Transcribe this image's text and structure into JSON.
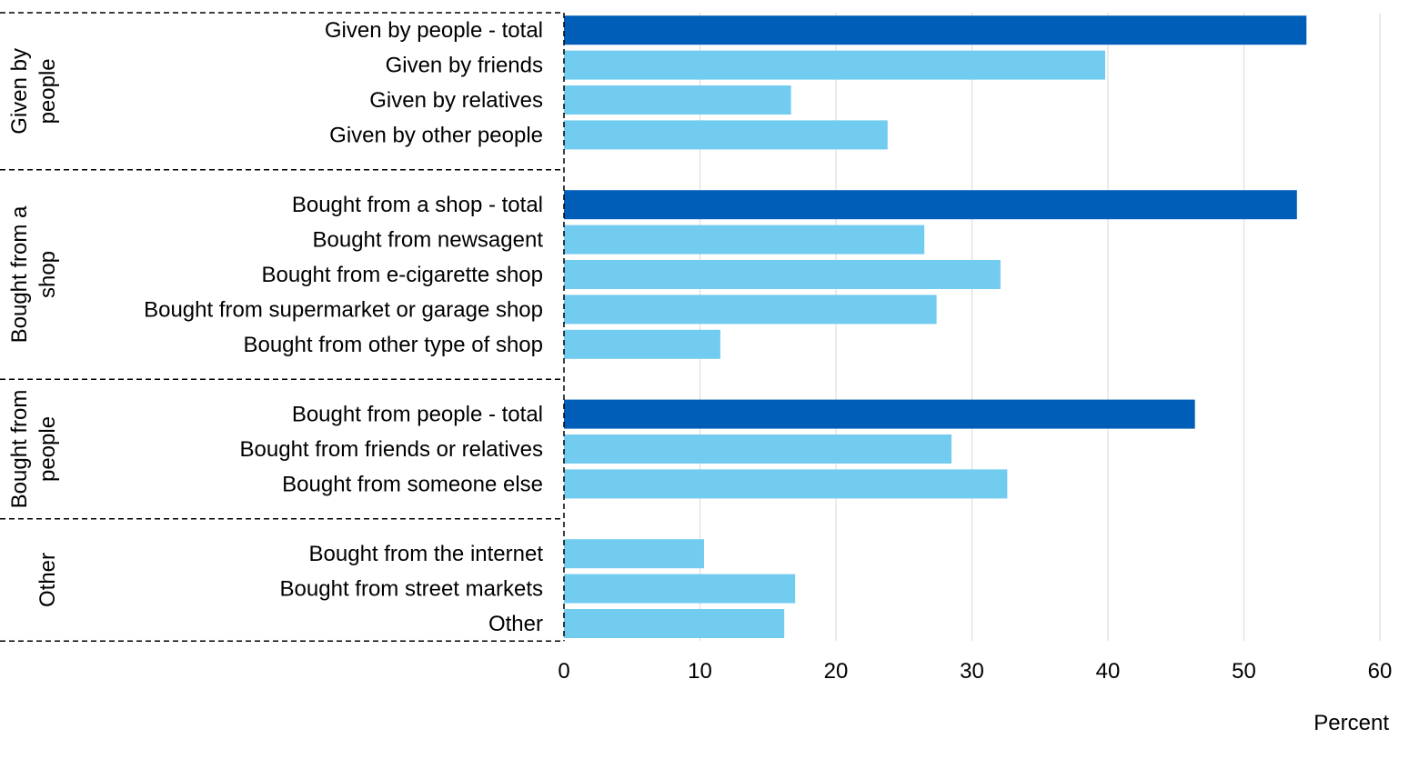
{
  "chart_data": {
    "type": "bar",
    "orientation": "horizontal",
    "title": "",
    "xlabel": "Percent",
    "xlim": [
      0,
      60
    ],
    "xticks": [
      0,
      10,
      20,
      30,
      40,
      50,
      60
    ],
    "grid": true,
    "colors": {
      "total": "#005EB8",
      "detail": "#72CCF0"
    },
    "groups": [
      {
        "label": "Given by people",
        "label_lines": [
          "Given by",
          "people"
        ],
        "bars": [
          {
            "label": "Given by people - total",
            "value": 54.6,
            "total": true
          },
          {
            "label": "Given by friends",
            "value": 39.8,
            "total": false
          },
          {
            "label": "Given by relatives",
            "value": 16.7,
            "total": false
          },
          {
            "label": "Given by other people",
            "value": 23.8,
            "total": false
          }
        ]
      },
      {
        "label": "Bought from a shop",
        "label_lines": [
          "Bought from a",
          "shop"
        ],
        "bars": [
          {
            "label": "Bought from a shop - total",
            "value": 53.9,
            "total": true
          },
          {
            "label": "Bought from newsagent",
            "value": 26.5,
            "total": false
          },
          {
            "label": "Bought from e-cigarette shop",
            "value": 32.1,
            "total": false
          },
          {
            "label": "Bought from supermarket or garage shop",
            "value": 27.4,
            "total": false
          },
          {
            "label": "Bought from other type of shop",
            "value": 11.5,
            "total": false
          }
        ]
      },
      {
        "label": "Bought from people",
        "label_lines": [
          "Bought from",
          "people"
        ],
        "bars": [
          {
            "label": "Bought from people - total",
            "value": 46.4,
            "total": true
          },
          {
            "label": "Bought from friends or relatives",
            "value": 28.5,
            "total": false
          },
          {
            "label": "Bought from someone else",
            "value": 32.6,
            "total": false
          }
        ]
      },
      {
        "label": "Other",
        "label_lines": [
          "Other"
        ],
        "bars": [
          {
            "label": "Bought from the internet",
            "value": 10.3,
            "total": false
          },
          {
            "label": "Bought from street markets",
            "value": 17.0,
            "total": false
          },
          {
            "label": "Other",
            "value": 16.2,
            "total": false
          }
        ]
      }
    ]
  }
}
